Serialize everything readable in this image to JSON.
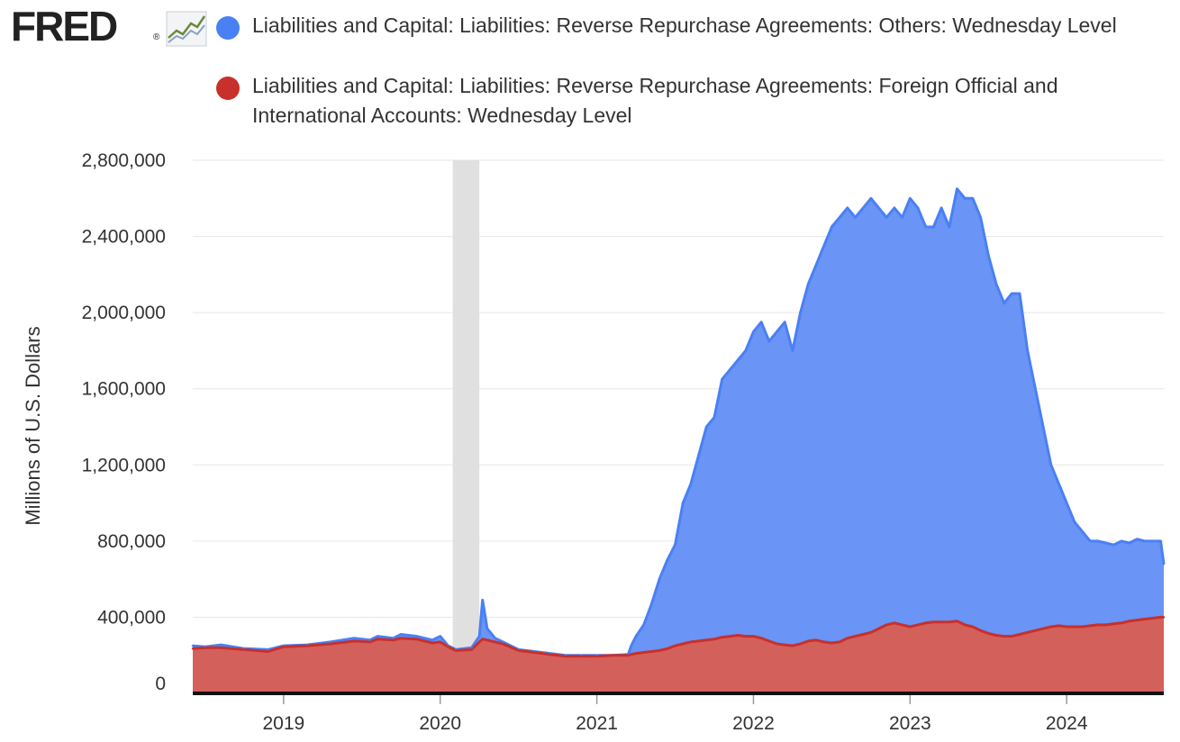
{
  "logo": {
    "text": "FRED",
    "mark": "®",
    "icon": "line-chart-icon"
  },
  "chart_data": {
    "type": "area",
    "title": "",
    "xlabel": "",
    "ylabel": "Millions of U.S. Dollars",
    "xlim": [
      2018.42,
      2024.62
    ],
    "ylim": [
      0,
      2800000
    ],
    "yticks": [
      0,
      400000,
      800000,
      1200000,
      1600000,
      2000000,
      2400000,
      2800000
    ],
    "ytick_labels": [
      "0",
      "400,000",
      "800,000",
      "1,200,000",
      "1,600,000",
      "2,000,000",
      "2,400,000",
      "2,800,000"
    ],
    "xticks": [
      2019,
      2020,
      2021,
      2022,
      2023,
      2024
    ],
    "xtick_labels": [
      "2019",
      "2020",
      "2021",
      "2022",
      "2023",
      "2024"
    ],
    "recessions": [
      [
        2020.08,
        2020.25
      ]
    ],
    "grid": true,
    "colors": {
      "others": "#4a80f5",
      "others_fill": "#6a94f5",
      "foreign": "#c8302b",
      "foreign_fill": "#d4605b",
      "recession": "#e0e0e0",
      "grid": "#e6e6e6"
    },
    "series": [
      {
        "name": "Liabilities and Capital: Liabilities: Reverse Repurchase Agreements: Others: Wednesday Level",
        "color": "#4a80f5",
        "x": [
          2018.42,
          2018.5,
          2018.6,
          2018.75,
          2018.9,
          2019.0,
          2019.15,
          2019.3,
          2019.45,
          2019.55,
          2019.6,
          2019.7,
          2019.75,
          2019.85,
          2019.95,
          2020.0,
          2020.05,
          2020.1,
          2020.2,
          2020.25,
          2020.27,
          2020.3,
          2020.35,
          2020.4,
          2020.5,
          2020.6,
          2020.7,
          2020.8,
          2020.9,
          2021.0,
          2021.1,
          2021.2,
          2021.22,
          2021.25,
          2021.3,
          2021.35,
          2021.4,
          2021.45,
          2021.5,
          2021.55,
          2021.6,
          2021.65,
          2021.7,
          2021.75,
          2021.8,
          2021.85,
          2021.9,
          2021.95,
          2022.0,
          2022.05,
          2022.1,
          2022.15,
          2022.2,
          2022.25,
          2022.3,
          2022.35,
          2022.4,
          2022.45,
          2022.5,
          2022.55,
          2022.6,
          2022.65,
          2022.7,
          2022.75,
          2022.8,
          2022.85,
          2022.9,
          2022.95,
          2023.0,
          2023.05,
          2023.1,
          2023.15,
          2023.2,
          2023.25,
          2023.3,
          2023.35,
          2023.4,
          2023.45,
          2023.5,
          2023.55,
          2023.6,
          2023.65,
          2023.7,
          2023.75,
          2023.8,
          2023.85,
          2023.9,
          2023.95,
          2024.0,
          2024.05,
          2024.1,
          2024.15,
          2024.2,
          2024.25,
          2024.3,
          2024.35,
          2024.4,
          2024.45,
          2024.5,
          2024.55,
          2024.6,
          2024.62
        ],
        "values": [
          250000,
          245000,
          255000,
          235000,
          230000,
          250000,
          255000,
          270000,
          290000,
          280000,
          300000,
          290000,
          310000,
          300000,
          280000,
          300000,
          250000,
          230000,
          240000,
          300000,
          490000,
          340000,
          290000,
          270000,
          230000,
          220000,
          210000,
          200000,
          200000,
          200000,
          200000,
          205000,
          250000,
          300000,
          360000,
          470000,
          600000,
          700000,
          780000,
          1000000,
          1100000,
          1250000,
          1400000,
          1450000,
          1650000,
          1700000,
          1750000,
          1800000,
          1900000,
          1950000,
          1850000,
          1900000,
          1950000,
          1800000,
          2000000,
          2150000,
          2250000,
          2350000,
          2450000,
          2500000,
          2550000,
          2500000,
          2550000,
          2600000,
          2550000,
          2500000,
          2550000,
          2500000,
          2600000,
          2550000,
          2450000,
          2450000,
          2550000,
          2450000,
          2650000,
          2600000,
          2600000,
          2500000,
          2300000,
          2150000,
          2050000,
          2100000,
          2100000,
          1800000,
          1600000,
          1400000,
          1200000,
          1100000,
          1000000,
          900000,
          850000,
          800000,
          800000,
          790000,
          780000,
          800000,
          790000,
          810000,
          800000,
          800000,
          800000,
          680000
        ]
      },
      {
        "name": "Liabilities and Capital: Liabilities: Reverse Repurchase Agreements: Foreign Official and International Accounts: Wednesday Level",
        "color": "#c8302b",
        "x": [
          2018.42,
          2018.5,
          2018.6,
          2018.75,
          2018.9,
          2019.0,
          2019.15,
          2019.3,
          2019.45,
          2019.55,
          2019.6,
          2019.7,
          2019.75,
          2019.85,
          2019.95,
          2020.0,
          2020.05,
          2020.1,
          2020.2,
          2020.25,
          2020.27,
          2020.3,
          2020.35,
          2020.4,
          2020.5,
          2020.6,
          2020.7,
          2020.8,
          2020.9,
          2021.0,
          2021.1,
          2021.2,
          2021.22,
          2021.25,
          2021.3,
          2021.35,
          2021.4,
          2021.45,
          2021.5,
          2021.55,
          2021.6,
          2021.65,
          2021.7,
          2021.75,
          2021.8,
          2021.85,
          2021.9,
          2021.95,
          2022.0,
          2022.05,
          2022.1,
          2022.15,
          2022.2,
          2022.25,
          2022.3,
          2022.35,
          2022.4,
          2022.45,
          2022.5,
          2022.55,
          2022.6,
          2022.65,
          2022.7,
          2022.75,
          2022.8,
          2022.85,
          2022.9,
          2022.95,
          2023.0,
          2023.05,
          2023.1,
          2023.15,
          2023.2,
          2023.25,
          2023.3,
          2023.35,
          2023.4,
          2023.45,
          2023.5,
          2023.55,
          2023.6,
          2023.65,
          2023.7,
          2023.75,
          2023.8,
          2023.85,
          2023.9,
          2023.95,
          2024.0,
          2024.05,
          2024.1,
          2024.15,
          2024.2,
          2024.25,
          2024.3,
          2024.35,
          2024.4,
          2024.45,
          2024.5,
          2024.55,
          2024.6,
          2024.62
        ],
        "values": [
          235000,
          240000,
          240000,
          230000,
          220000,
          245000,
          250000,
          260000,
          275000,
          270000,
          285000,
          280000,
          290000,
          285000,
          265000,
          270000,
          245000,
          225000,
          230000,
          270000,
          285000,
          280000,
          270000,
          260000,
          225000,
          215000,
          205000,
          195000,
          195000,
          195000,
          200000,
          200000,
          205000,
          210000,
          215000,
          220000,
          225000,
          235000,
          250000,
          260000,
          270000,
          275000,
          280000,
          285000,
          295000,
          300000,
          305000,
          300000,
          300000,
          290000,
          275000,
          260000,
          255000,
          250000,
          260000,
          275000,
          280000,
          270000,
          265000,
          270000,
          290000,
          300000,
          310000,
          320000,
          340000,
          360000,
          370000,
          360000,
          350000,
          360000,
          370000,
          375000,
          375000,
          375000,
          380000,
          360000,
          350000,
          330000,
          315000,
          305000,
          300000,
          300000,
          310000,
          320000,
          330000,
          340000,
          350000,
          355000,
          350000,
          350000,
          350000,
          355000,
          360000,
          360000,
          365000,
          370000,
          380000,
          385000,
          390000,
          395000,
          400000,
          400000
        ]
      }
    ]
  }
}
